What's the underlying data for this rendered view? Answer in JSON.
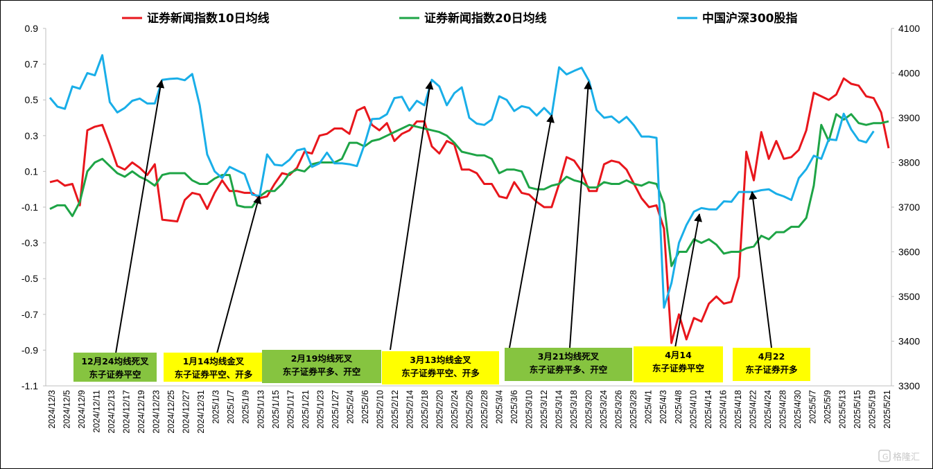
{
  "chart_data": {
    "type": "line",
    "legend": {
      "placement": "top",
      "entries": [
        {
          "label": "证券新闻指数10日均线",
          "color": "#e8161c"
        },
        {
          "label": "证券新闻指数20日均线",
          "color": "#1ea446"
        },
        {
          "label": "中国沪深300股指",
          "color": "#19aee8"
        }
      ]
    },
    "y_left": {
      "ylim": [
        -1.1,
        0.9
      ],
      "ticks": [
        "0.9",
        "0.7",
        "0.5",
        "0.3",
        "0.1",
        "-0.1",
        "-0.3",
        "-0.5",
        "-0.7",
        "-0.9",
        "-1.1"
      ]
    },
    "y_right": {
      "ylim": [
        3300,
        4100
      ],
      "ticks": [
        "4100",
        "4000",
        "3900",
        "3800",
        "3700",
        "3600",
        "3500",
        "3400",
        "3300"
      ]
    },
    "x_tick_labels": [
      "2024/12/3",
      "2024/12/5",
      "2024/12/9",
      "2024/12/11",
      "2024/12/13",
      "2024/12/17",
      "2024/12/19",
      "2024/12/23",
      "2024/12/25",
      "2024/12/27",
      "2024/12/31",
      "2025/1/3",
      "2025/1/7",
      "2025/1/9",
      "2025/1/13",
      "2025/1/15",
      "2025/1/17",
      "2025/1/21",
      "2025/1/23",
      "2025/1/27",
      "2025/2/4",
      "2025/2/6",
      "2025/2/10",
      "2025/2/12",
      "2025/2/14",
      "2025/2/18",
      "2025/2/20",
      "2025/2/24",
      "2025/2/26",
      "2025/2/28",
      "2025/3/4",
      "2025/3/6",
      "2025/3/10",
      "2025/3/12",
      "2025/3/14",
      "2025/3/18",
      "2025/3/20",
      "2025/3/24",
      "2025/3/26",
      "2025/3/28",
      "2025/4/1",
      "2025/4/3",
      "2025/4/8",
      "2025/4/10",
      "2025/4/14",
      "2025/4/16",
      "2025/4/18",
      "2025/4/22",
      "2025/4/24",
      "2025/4/28",
      "2025/4/30",
      "2025/5/7",
      "2025/5/9",
      "2025/5/13",
      "2025/5/15",
      "2025/5/19",
      "2025/5/21"
    ],
    "series": [
      {
        "name": "证券新闻指数10日均线",
        "axis": "left",
        "color": "#e8161c",
        "values": [
          0.04,
          0.05,
          0.02,
          0.03,
          -0.09,
          0.33,
          0.35,
          0.36,
          0.25,
          0.13,
          0.11,
          0.15,
          0.12,
          0.08,
          0.14,
          -0.17,
          -0.175,
          -0.18,
          -0.06,
          -0.02,
          -0.03,
          -0.11,
          -0.02,
          0.05,
          -0.01,
          -0.01,
          -0.02,
          -0.02,
          -0.05,
          -0.04,
          0.03,
          0.09,
          0.08,
          0.12,
          0.21,
          0.2,
          0.3,
          0.31,
          0.34,
          0.34,
          0.31,
          0.44,
          0.46,
          0.36,
          0.33,
          0.37,
          0.27,
          0.31,
          0.33,
          0.38,
          0.38,
          0.24,
          0.2,
          0.27,
          0.25,
          0.11,
          0.11,
          0.09,
          0.03,
          0.03,
          -0.04,
          -0.05,
          0.04,
          -0.02,
          -0.03,
          -0.07,
          -0.1,
          -0.1,
          0.03,
          0.18,
          0.16,
          0.1,
          -0.01,
          -0.01,
          0.14,
          0.16,
          0.15,
          0.11,
          0.03,
          -0.05,
          -0.1,
          -0.09,
          -0.22,
          -0.86,
          -0.7,
          -0.84,
          -0.72,
          -0.74,
          -0.64,
          -0.6,
          -0.64,
          -0.63,
          -0.49,
          0.21,
          0.05,
          0.32,
          0.17,
          0.27,
          0.17,
          0.18,
          0.22,
          0.33,
          0.54,
          0.52,
          0.5,
          0.53,
          0.62,
          0.59,
          0.58,
          0.52,
          0.51,
          0.43,
          0.23
        ]
      },
      {
        "name": "证券新闻指数20日均线",
        "axis": "left",
        "color": "#1ea446",
        "values": [
          -0.11,
          -0.09,
          -0.09,
          -0.15,
          -0.07,
          0.1,
          0.15,
          0.17,
          0.13,
          0.09,
          0.07,
          0.1,
          0.07,
          0.05,
          0.02,
          0.08,
          0.09,
          0.09,
          0.09,
          0.05,
          0.03,
          0.03,
          0.06,
          0.08,
          0.08,
          -0.09,
          -0.1,
          -0.1,
          -0.04,
          -0.01,
          -0.01,
          0.03,
          0.09,
          0.11,
          0.1,
          0.14,
          0.15,
          0.15,
          0.15,
          0.17,
          0.26,
          0.26,
          0.24,
          0.27,
          0.28,
          0.3,
          0.32,
          0.34,
          0.36,
          0.35,
          0.34,
          0.33,
          0.32,
          0.3,
          0.26,
          0.21,
          0.2,
          0.19,
          0.19,
          0.17,
          0.09,
          0.11,
          0.11,
          0.1,
          0.01,
          0.0,
          0.0,
          0.02,
          0.03,
          0.07,
          0.05,
          0.04,
          0.01,
          0.01,
          0.04,
          0.03,
          0.03,
          0.05,
          0.03,
          0.02,
          0.04,
          0.03,
          -0.08,
          -0.43,
          -0.35,
          -0.35,
          -0.28,
          -0.3,
          -0.28,
          -0.31,
          -0.36,
          -0.35,
          -0.35,
          -0.33,
          -0.32,
          -0.26,
          -0.28,
          -0.24,
          -0.24,
          -0.21,
          -0.21,
          -0.16,
          0.02,
          0.36,
          0.27,
          0.42,
          0.39,
          0.42,
          0.37,
          0.36,
          0.37,
          0.37,
          0.38
        ]
      },
      {
        "name": "中国沪深300股指",
        "axis": "right",
        "color": "#19aee8",
        "values": [
          3945,
          3925,
          3920,
          3970,
          3965,
          4000,
          3995,
          4040,
          3935,
          3912,
          3922,
          3938,
          3943,
          3932,
          3932,
          3985,
          3987,
          3988,
          3984,
          3998,
          3928,
          3818,
          3780,
          3765,
          3790,
          3782,
          3774,
          3728,
          3725,
          3818,
          3795,
          3793,
          3806,
          3827,
          3831,
          3790,
          3798,
          3822,
          3798,
          3798,
          3796,
          3792,
          3840,
          3897,
          3898,
          3908,
          3944,
          3947,
          3916,
          3938,
          3928,
          3985,
          3970,
          3928,
          3955,
          3968,
          3900,
          3887,
          3884,
          3896,
          3948,
          3940,
          3915,
          3926,
          3922,
          3905,
          3922,
          3905,
          4013,
          3997,
          4005,
          4012,
          3982,
          3917,
          3900,
          3903,
          3889,
          3902,
          3883,
          3858,
          3858,
          3855,
          3475,
          3530,
          3620,
          3660,
          3690,
          3698,
          3695,
          3695,
          3713,
          3712,
          3734,
          3734,
          3734,
          3738,
          3740,
          3730,
          3724,
          3716,
          3765,
          3785,
          3815,
          3808,
          3852,
          3850,
          3909,
          3874,
          3850,
          3845,
          3870
        ]
      }
    ],
    "annotations": [
      {
        "text": [
          "12月24均线死叉",
          "东子证券平空"
        ],
        "box_color": "#86c440"
      },
      {
        "text": [
          "1月14均线金叉",
          "东子证券平空、开多"
        ],
        "box_color": "#ffff00"
      },
      {
        "text": [
          "2月19均线死叉",
          "东子证券平多、开空"
        ],
        "box_color": "#86c440"
      },
      {
        "text": [
          "3月13均线金叉",
          "东子证券平空、开多"
        ],
        "box_color": "#ffff00"
      },
      {
        "text": [
          "3月21均线死叉",
          "东子证券平多、开空"
        ],
        "box_color": "#86c440"
      },
      {
        "text": [
          "4月14",
          "东子证券平空"
        ],
        "box_color": "#ffff00"
      },
      {
        "text": [
          "4月22",
          "东子证券开多"
        ],
        "box_color": "#ffff00"
      }
    ],
    "grid": false
  },
  "watermark": "格隆汇"
}
